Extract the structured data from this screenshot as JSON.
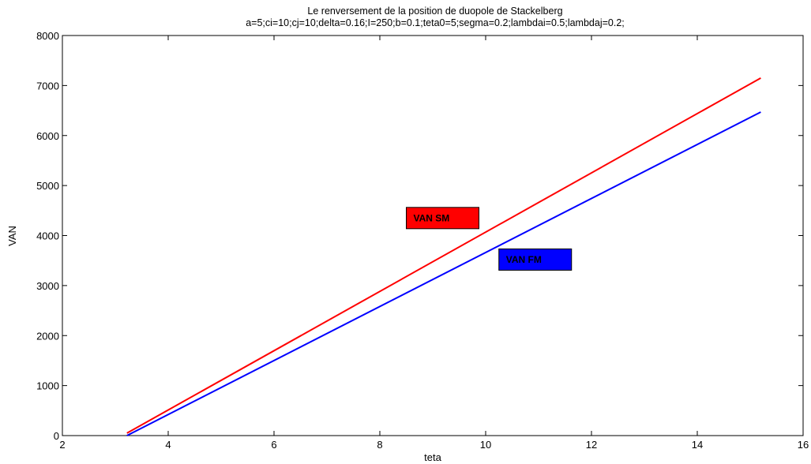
{
  "chart_data": {
    "type": "line",
    "title": "Le renversement de la position de duopole de Stackelberg",
    "subtitle": "a=5;ci=10;cj=10;delta=0.16;I=250;b=0.1;teta0=5;segma=0.2;lambdai=0.5;lambdaj=0.2;",
    "xlabel": "teta",
    "ylabel": "VAN",
    "xlim": [
      2,
      16
    ],
    "ylim": [
      0,
      8000
    ],
    "xticks": [
      2,
      4,
      6,
      8,
      10,
      12,
      14,
      16
    ],
    "yticks": [
      0,
      1000,
      2000,
      3000,
      4000,
      5000,
      6000,
      7000,
      8000
    ],
    "grid": false,
    "series": [
      {
        "name": "VAN SM",
        "color": "#ff0000",
        "x": [
          3.22,
          15.2
        ],
        "y": [
          50,
          7150
        ]
      },
      {
        "name": "VAN FM",
        "color": "#0000ff",
        "x": [
          3.22,
          15.2
        ],
        "y": [
          0,
          6470
        ]
      }
    ],
    "annotations": [
      {
        "text": "VAN SM",
        "fill": "#ff0000",
        "x": 8.5,
        "y": 4350
      },
      {
        "text": "VAN FM",
        "fill": "#0000ff",
        "x": 10.25,
        "y": 3520
      }
    ]
  }
}
